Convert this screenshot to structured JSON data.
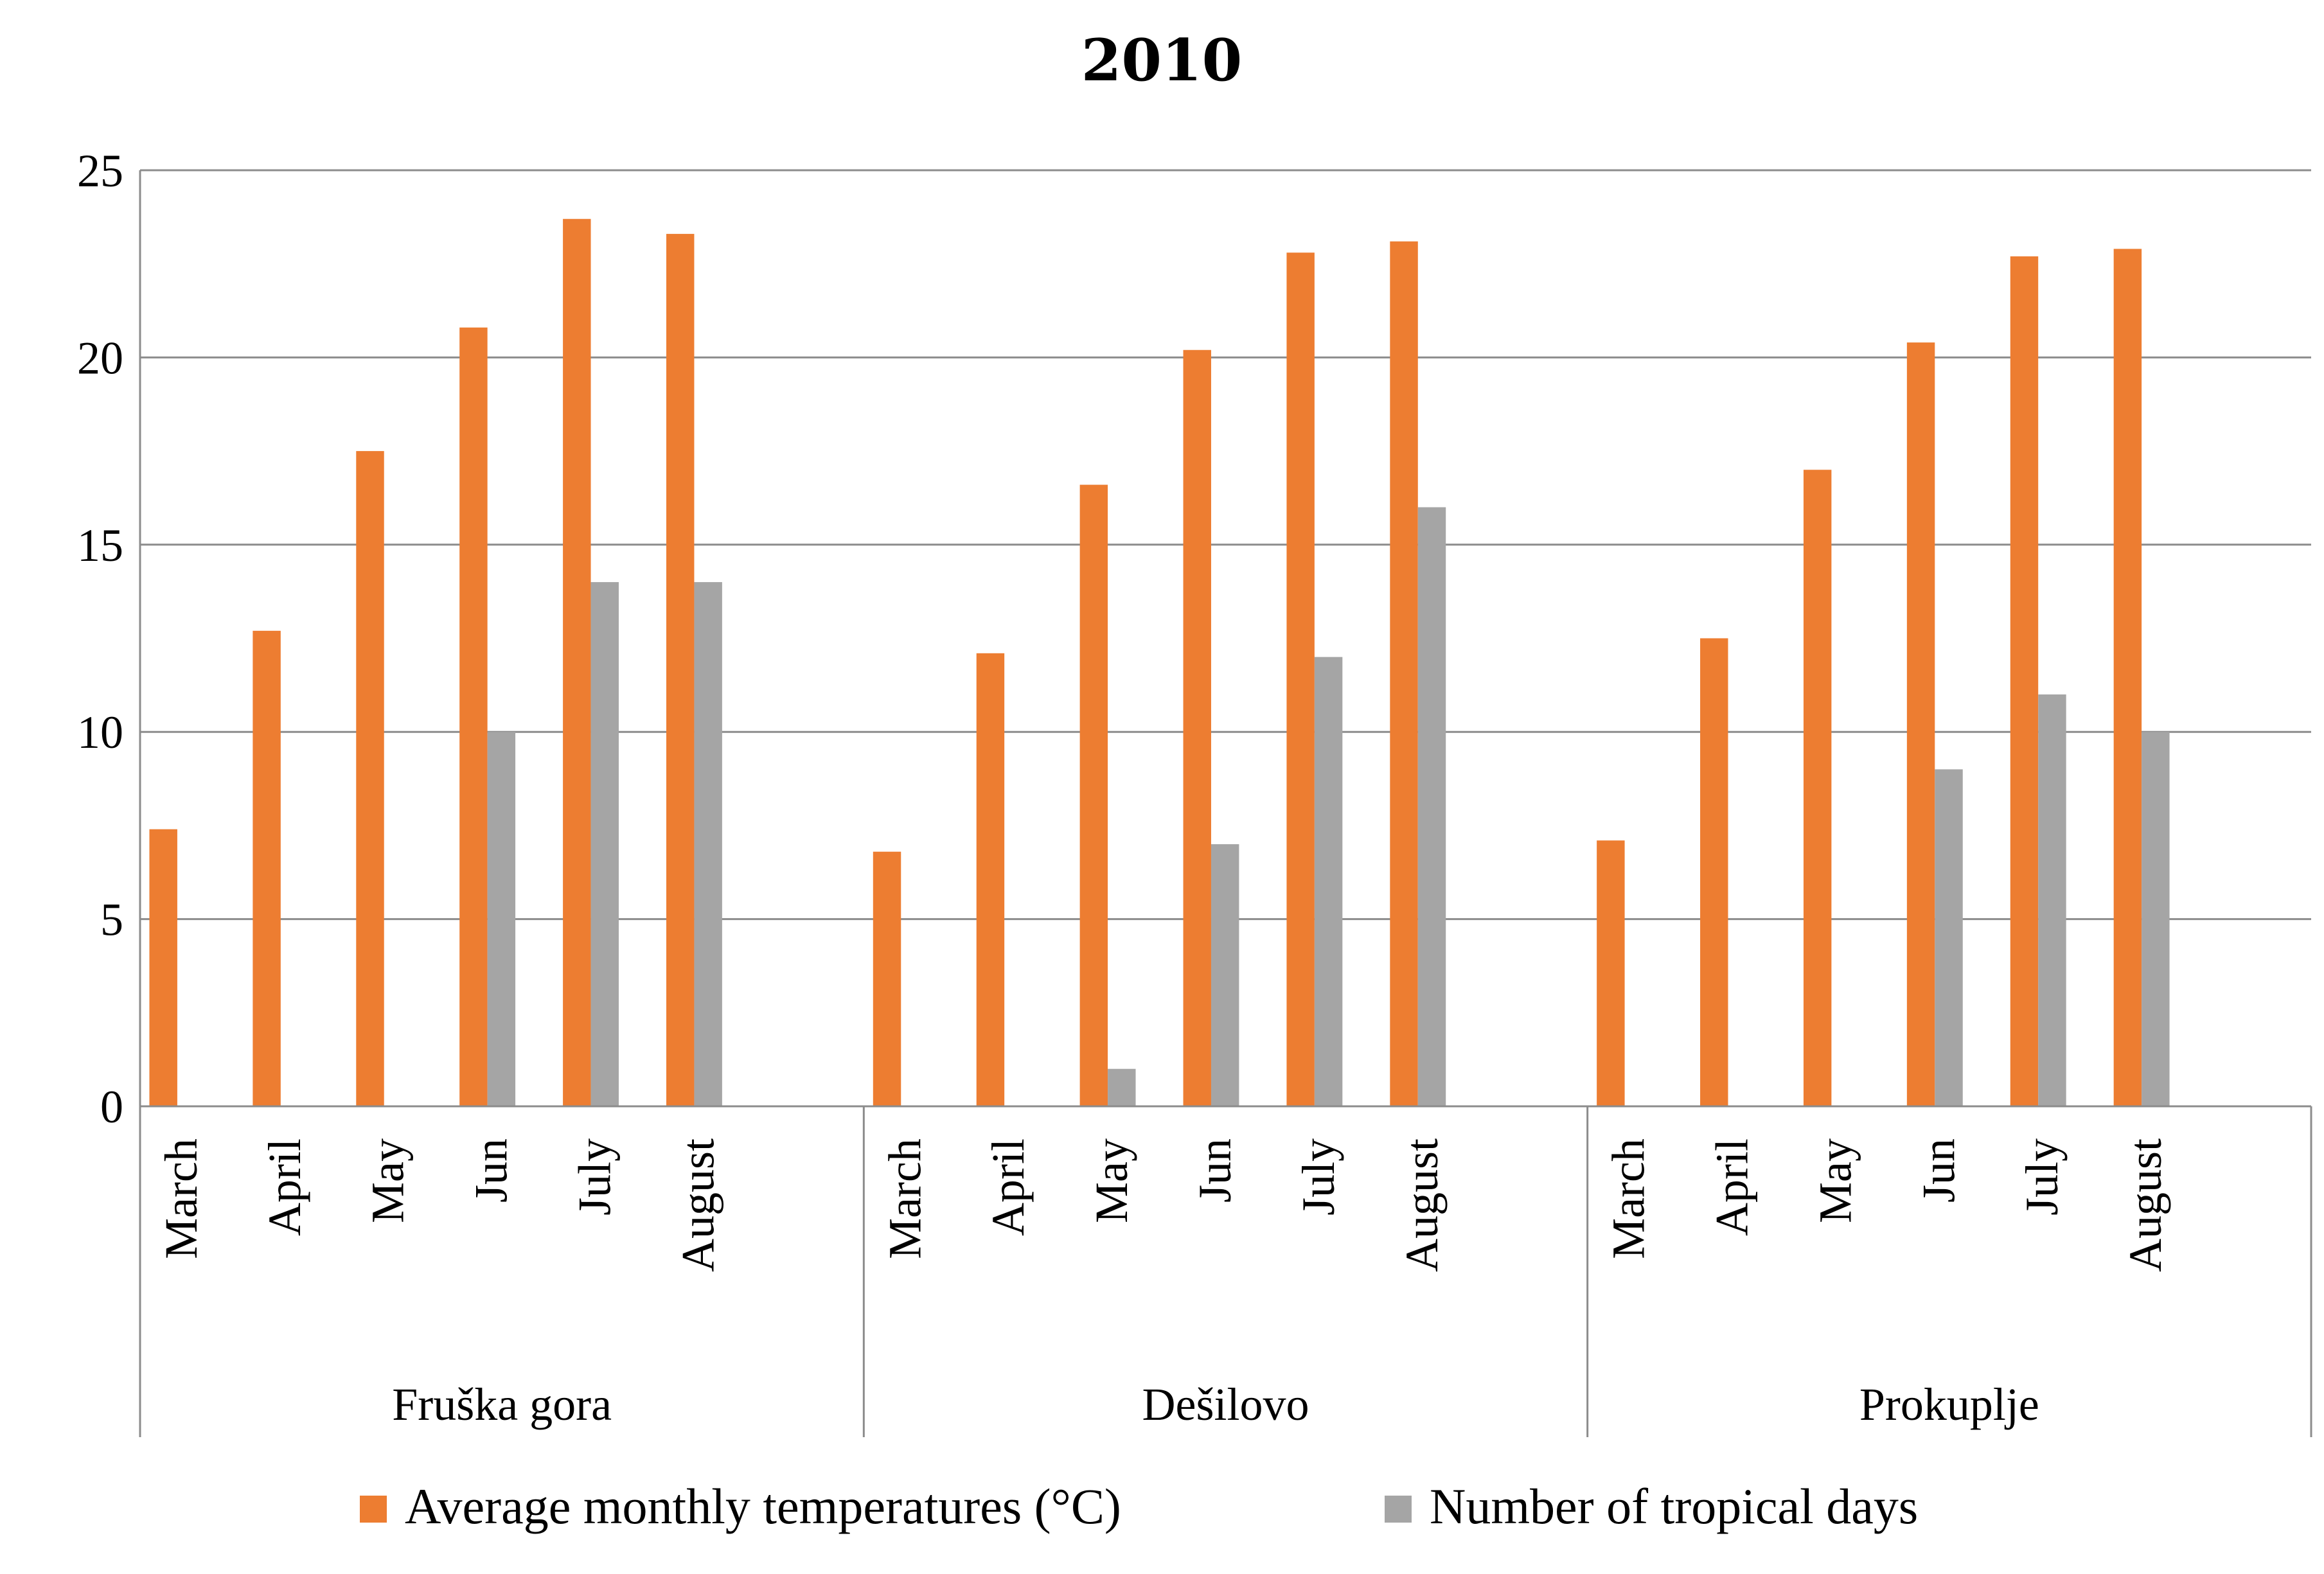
{
  "chart_data": {
    "type": "bar",
    "title": "2010",
    "xlabel": "",
    "ylabel": "",
    "ylim": [
      0,
      25
    ],
    "yticks": [
      0,
      5,
      10,
      15,
      20,
      25
    ],
    "grid": true,
    "legend_position": "bottom",
    "groups": [
      {
        "name": "Fruška gora",
        "categories": [
          "March",
          "April",
          "May",
          "Jun",
          "July",
          "August"
        ],
        "series": [
          {
            "name": "Average monthly temperatures (°C)",
            "values": [
              7.4,
              12.7,
              17.5,
              20.8,
              23.7,
              23.3
            ]
          },
          {
            "name": "Number of  tropical days",
            "values": [
              0,
              0,
              0,
              10,
              14,
              14
            ]
          }
        ]
      },
      {
        "name": "Dešilovo",
        "categories": [
          "March",
          "April",
          "May",
          "Jun",
          "July",
          "August"
        ],
        "series": [
          {
            "name": "Average monthly temperatures (°C)",
            "values": [
              6.8,
              12.1,
              16.6,
              20.2,
              22.8,
              23.1
            ]
          },
          {
            "name": "Number of  tropical days",
            "values": [
              0,
              0,
              1,
              7,
              12,
              16
            ]
          }
        ]
      },
      {
        "name": "Prokuplje",
        "categories": [
          "March",
          "April",
          "May",
          "Jun",
          "July",
          "August"
        ],
        "series": [
          {
            "name": "Average monthly temperatures (°C)",
            "values": [
              7.1,
              12.5,
              17.0,
              20.4,
              22.7,
              22.9
            ]
          },
          {
            "name": "Number of  tropical days",
            "values": [
              0,
              0,
              0,
              9,
              11,
              10
            ]
          }
        ]
      }
    ],
    "legend": [
      {
        "label": "Average monthly temperatures (°C)",
        "color": "#ED7D31"
      },
      {
        "label": "Number of  tropical days",
        "color": "#A5A5A5"
      }
    ]
  }
}
